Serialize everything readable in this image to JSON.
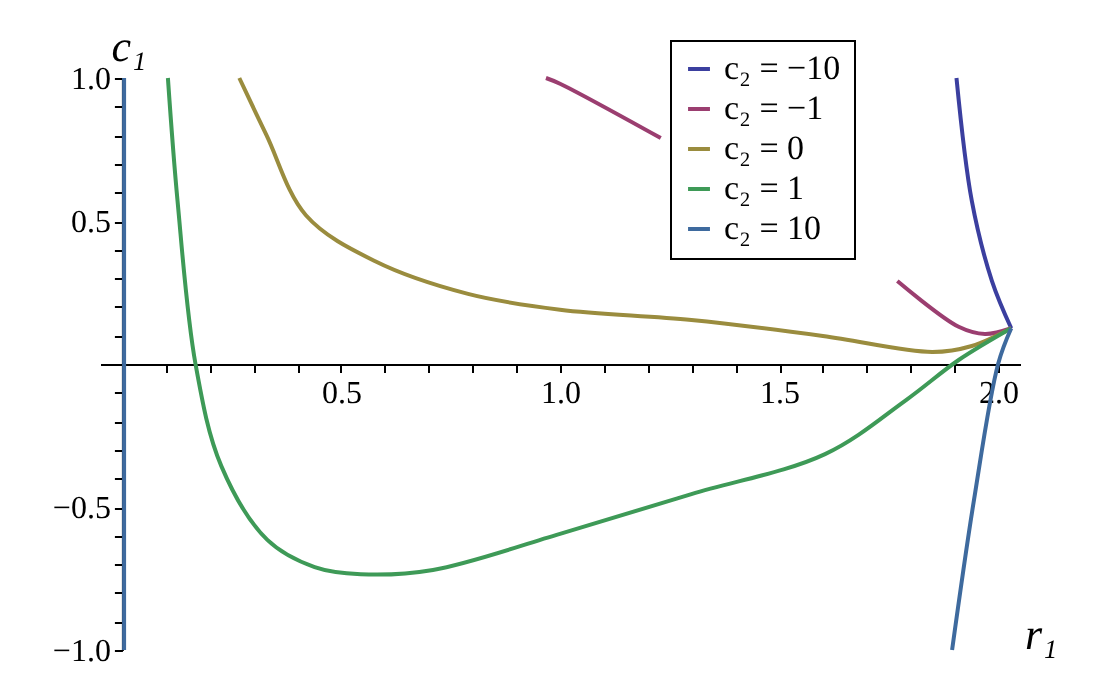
{
  "chart_data": {
    "type": "line",
    "xlabel": "r₁",
    "ylabel": "c₁",
    "xlim": [
      -0.05,
      2.05
    ],
    "ylim": [
      -1,
      1
    ],
    "xticks": [
      {
        "value": 0.1,
        "label": null
      },
      {
        "value": 0.2,
        "label": null
      },
      {
        "value": 0.3,
        "label": null
      },
      {
        "value": 0.4,
        "label": null
      },
      0.5,
      {
        "value": 0.6,
        "label": null
      },
      {
        "value": 0.7,
        "label": null
      },
      {
        "value": 0.8,
        "label": null
      },
      {
        "value": 0.9,
        "label": null
      },
      {
        "value": 1,
        "label": "1.0"
      },
      {
        "value": 1.1,
        "label": null
      },
      {
        "value": 1.2,
        "label": null
      },
      {
        "value": 1.3,
        "label": null
      },
      {
        "value": 1.4,
        "label": null
      },
      1.5,
      {
        "value": 1.6,
        "label": null
      },
      {
        "value": 1.7,
        "label": null
      },
      {
        "value": 1.8,
        "label": null
      },
      {
        "value": 1.9,
        "label": null
      },
      {
        "value": 2,
        "label": "2.0"
      }
    ],
    "yticks": [
      {
        "value": -1,
        "label": "−1.0"
      },
      {
        "value": -0.9,
        "label": null
      },
      {
        "value": -0.8,
        "label": null
      },
      {
        "value": -0.7,
        "label": null
      },
      {
        "value": -0.6,
        "label": null
      },
      {
        "value": -0.5,
        "label": "−0.5"
      },
      {
        "value": -0.4,
        "label": null
      },
      {
        "value": -0.3,
        "label": null
      },
      {
        "value": -0.2,
        "label": null
      },
      {
        "value": -0.1,
        "label": null
      },
      {
        "value": 0.1,
        "label": null
      },
      {
        "value": 0.2,
        "label": null
      },
      {
        "value": 0.3,
        "label": null
      },
      {
        "value": 0.4,
        "label": null
      },
      0.5,
      {
        "value": 0.6,
        "label": null
      },
      {
        "value": 0.7,
        "label": null
      },
      {
        "value": 0.8,
        "label": null
      },
      {
        "value": 0.9,
        "label": null
      },
      {
        "value": 1,
        "label": "1.0"
      }
    ],
    "grid": false,
    "legend": "top right",
    "marker": "none",
    "line_style": "solid",
    "series": [
      {
        "name": "c₂ = −10",
        "color": "#3b3f9f",
        "x": [
          1.905,
          1.94,
          1.986,
          2.03
        ],
        "values": [
          1.0,
          0.57,
          0.29,
          0.125
        ]
      },
      {
        "name": "c₂ = −1",
        "color": "#9b3e70",
        "x": [
          0.968,
          1.0,
          1.23,
          1.5,
          1.77,
          1.91,
          1.97,
          2.03
        ],
        "values": [
          1.0,
          0.98,
          0.79,
          null,
          0.29,
          0.13,
          0.105,
          0.125
        ]
      },
      {
        "name": "c₂ = 0",
        "color": "#9a8c3e",
        "x": [
          0.268,
          0.33,
          0.42,
          0.577,
          0.79,
          1.0,
          1.3,
          1.6,
          1.85,
          1.94,
          2.03
        ],
        "values": [
          1.0,
          0.8,
          0.52,
          0.36,
          0.245,
          0.19,
          0.154,
          0.098,
          0.042,
          0.063,
          0.125
        ]
      },
      {
        "name": "c₂ = 1",
        "color": "#3e9a57",
        "x": [
          0.105,
          0.127,
          0.168,
          0.227,
          0.332,
          0.44,
          0.545,
          0.71,
          1.0,
          1.3,
          1.605,
          1.79,
          1.91,
          2.03
        ],
        "values": [
          1.0,
          0.57,
          0.0,
          -0.357,
          -0.615,
          -0.71,
          -0.735,
          -0.72,
          -0.594,
          -0.455,
          -0.315,
          -0.126,
          0.014,
          0.125
        ]
      },
      {
        "name": "c₂ = 10",
        "color": "#3e6a9e",
        "x": [
          0.005,
          0.005,
          1.0,
          2.03,
          2.0,
          1.945,
          1.895
        ],
        "values": [
          -1.0,
          1.0,
          null,
          0.125,
          0.0,
          -0.475,
          -1.0
        ]
      }
    ]
  }
}
